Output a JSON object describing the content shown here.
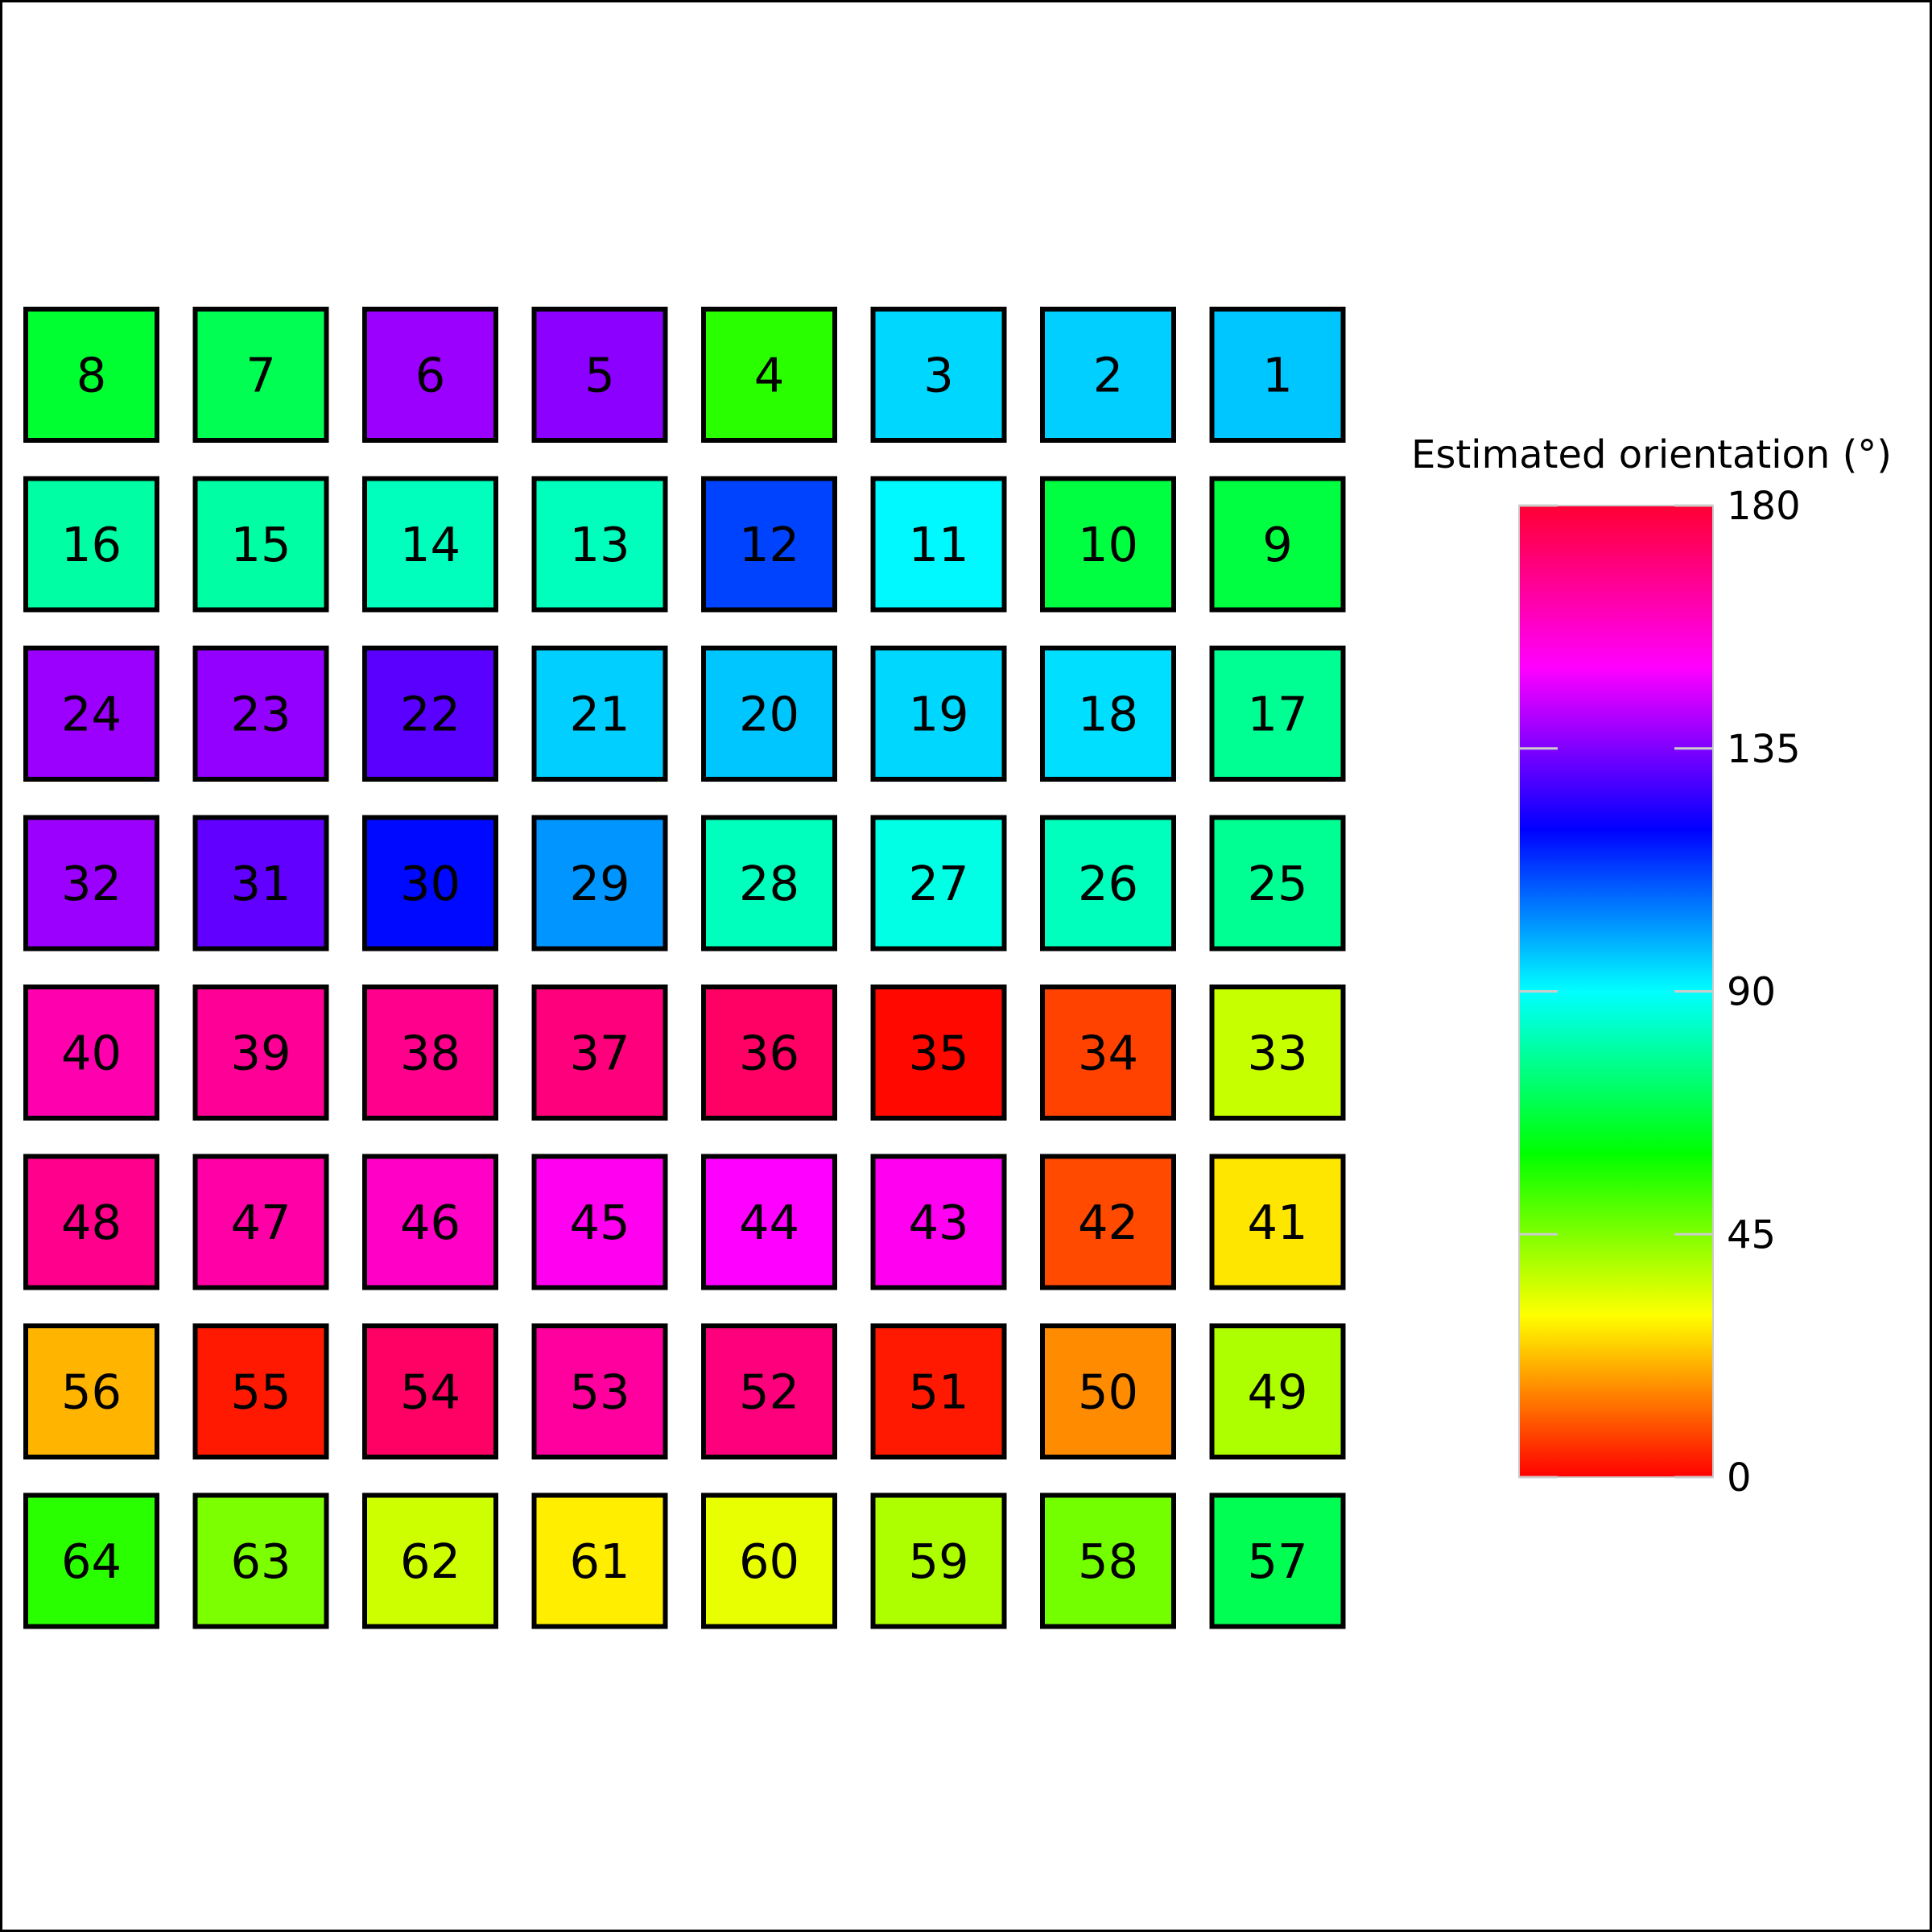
{
  "chart_data": {
    "type": "heatmap",
    "colorbar": {
      "title": "Estimated orientation (°)",
      "range": [
        0,
        180
      ],
      "ticks": [
        0,
        45,
        90,
        135,
        180
      ],
      "colormap": "hsv"
    },
    "grid": {
      "rows": 8,
      "cols": 8,
      "cells": [
        [
          {
            "label": "8",
            "value": 68
          },
          {
            "label": "7",
            "value": 72
          },
          {
            "label": "6",
            "value": 143
          },
          {
            "label": "5",
            "value": 141
          },
          {
            "label": "4",
            "value": 57
          },
          {
            "label": "3",
            "value": 98
          },
          {
            "label": "2",
            "value": 99
          },
          {
            "label": "1",
            "value": 100
          }
        ],
        [
          {
            "label": "16",
            "value": 82
          },
          {
            "label": "15",
            "value": 82
          },
          {
            "label": "14",
            "value": 85
          },
          {
            "label": "13",
            "value": 85
          },
          {
            "label": "12",
            "value": 116
          },
          {
            "label": "11",
            "value": 94
          },
          {
            "label": "10",
            "value": 70
          },
          {
            "label": "9",
            "value": 70
          }
        ],
        [
          {
            "label": "24",
            "value": 143
          },
          {
            "label": "23",
            "value": 142
          },
          {
            "label": "22",
            "value": 135
          },
          {
            "label": "21",
            "value": 99
          },
          {
            "label": "20",
            "value": 100
          },
          {
            "label": "19",
            "value": 98
          },
          {
            "label": "18",
            "value": 97
          },
          {
            "label": "17",
            "value": 80
          }
        ],
        [
          {
            "label": "32",
            "value": 143
          },
          {
            "label": "31",
            "value": 136
          },
          {
            "label": "30",
            "value": 123
          },
          {
            "label": "29",
            "value": 106
          },
          {
            "label": "28",
            "value": 85
          },
          {
            "label": "27",
            "value": 90
          },
          {
            "label": "26",
            "value": 85
          },
          {
            "label": "25",
            "value": 80
          }
        ],
        [
          {
            "label": "40",
            "value": 165
          },
          {
            "label": "39",
            "value": 168
          },
          {
            "label": "38",
            "value": 169
          },
          {
            "label": "37",
            "value": 171
          },
          {
            "label": "36",
            "value": 174
          },
          {
            "label": "35",
            "value": 1
          },
          {
            "label": "34",
            "value": 8
          },
          {
            "label": "33",
            "value": 38
          }
        ],
        [
          {
            "label": "48",
            "value": 169
          },
          {
            "label": "47",
            "value": 166
          },
          {
            "label": "46",
            "value": 162
          },
          {
            "label": "45",
            "value": 157
          },
          {
            "label": "44",
            "value": 155
          },
          {
            "label": "43",
            "value": 157
          },
          {
            "label": "42",
            "value": 9
          },
          {
            "label": "41",
            "value": 28
          }
        ],
        [
          {
            "label": "56",
            "value": 22
          },
          {
            "label": "55",
            "value": 3
          },
          {
            "label": "54",
            "value": 174
          },
          {
            "label": "53",
            "value": 167
          },
          {
            "label": "52",
            "value": 171
          },
          {
            "label": "51",
            "value": 3
          },
          {
            "label": "50",
            "value": 17
          },
          {
            "label": "49",
            "value": 41
          }
        ],
        [
          {
            "label": "64",
            "value": 57
          },
          {
            "label": "63",
            "value": 47
          },
          {
            "label": "62",
            "value": 37
          },
          {
            "label": "61",
            "value": 29
          },
          {
            "label": "60",
            "value": 34
          },
          {
            "label": "59",
            "value": 41
          },
          {
            "label": "58",
            "value": 48
          },
          {
            "label": "57",
            "value": 72
          }
        ]
      ]
    }
  }
}
